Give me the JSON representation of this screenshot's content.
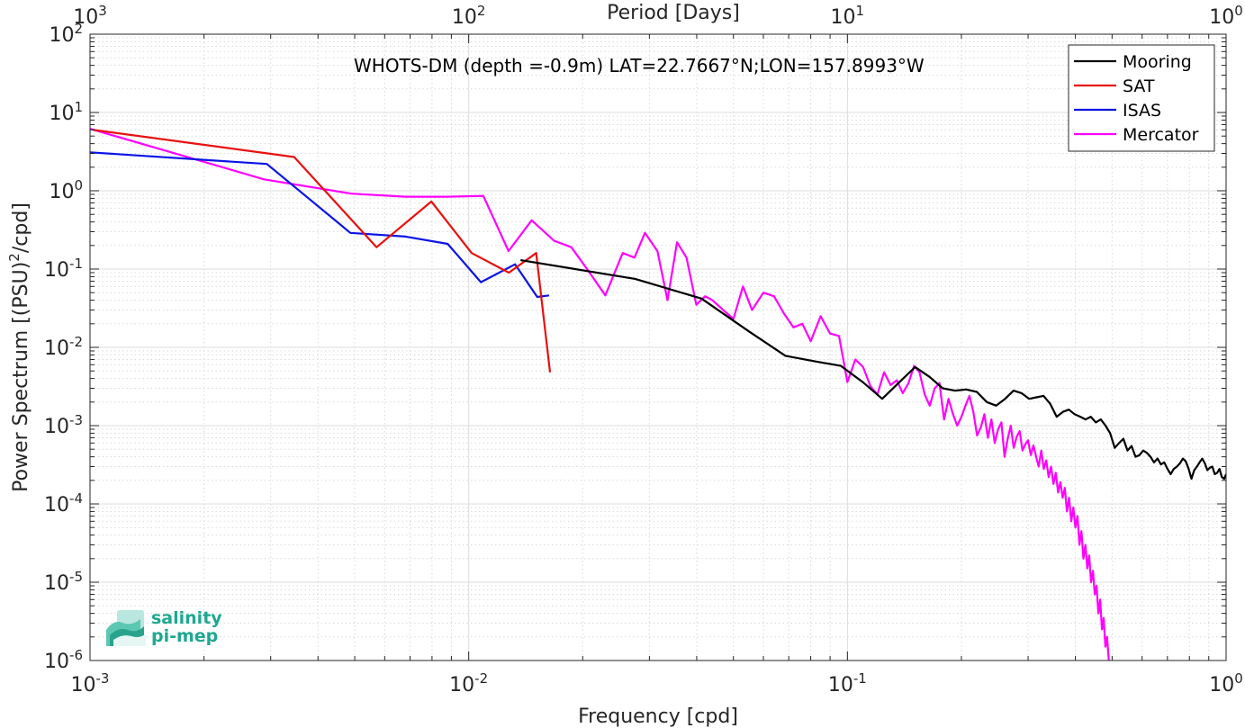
{
  "colors": {
    "mooring": "#000000",
    "sat": "#e8100f",
    "isas": "#0a14e6",
    "mercator": "#ff00ff",
    "logo_teal": "#1fa891"
  },
  "logo": {
    "line1": "salinity",
    "line2": "pi-mep",
    "icon": "salinity-waves-icon"
  },
  "chart_data": {
    "type": "line",
    "title": "WHOTS-DM (depth =-0.9m) LAT=22.7667°N;LON=157.8993°W",
    "xlabel": "Frequency [cpd]",
    "ylabel": "Power Spectrum [(PSU)²/cpd]",
    "top_xlabel": "Period [Days]",
    "xscale": "log",
    "yscale": "log",
    "xlim": [
      0.001,
      1
    ],
    "ylim": [
      1e-06,
      100
    ],
    "grid": true,
    "legend_position": "top-right",
    "x_tick_labels": [
      {
        "base": "10",
        "exp": "-3"
      },
      {
        "base": "10",
        "exp": "-2"
      },
      {
        "base": "10",
        "exp": "-1"
      },
      {
        "base": "10",
        "exp": "0"
      }
    ],
    "top_tick_labels": [
      {
        "base": "10",
        "exp": "3"
      },
      {
        "base": "10",
        "exp": "2"
      },
      {
        "base": "10",
        "exp": "1"
      },
      {
        "base": "10",
        "exp": "0"
      }
    ],
    "y_tick_labels": [
      {
        "base": "10",
        "exp": "-6"
      },
      {
        "base": "10",
        "exp": "-5"
      },
      {
        "base": "10",
        "exp": "-4"
      },
      {
        "base": "10",
        "exp": "-3"
      },
      {
        "base": "10",
        "exp": "-2"
      },
      {
        "base": "10",
        "exp": "-1"
      },
      {
        "base": "10",
        "exp": "0"
      },
      {
        "base": "10",
        "exp": "1"
      },
      {
        "base": "10",
        "exp": "2"
      }
    ],
    "series": [
      {
        "name": "Mooring",
        "color": "#000000",
        "x": [
          0.0137,
          0.0275,
          0.0412,
          0.0549,
          0.0686,
          0.0824,
          0.0961,
          0.1098,
          0.1236,
          0.1373,
          0.151,
          0.1648,
          0.1785,
          0.1922,
          0.2059,
          0.2197,
          0.2334,
          0.2471,
          0.2608,
          0.2746,
          0.2883,
          0.302,
          0.3158,
          0.3295,
          0.3432,
          0.3569,
          0.3707,
          0.3844,
          0.3981,
          0.4119,
          0.4256,
          0.4393,
          0.453,
          0.4668,
          0.4805,
          0.4942,
          0.508,
          0.5217,
          0.5354,
          0.5491,
          0.5629,
          0.5766,
          0.5903,
          0.6041,
          0.6178,
          0.6315,
          0.6452,
          0.659,
          0.6727,
          0.6864,
          0.7002,
          0.7139,
          0.7276,
          0.7413,
          0.7551,
          0.7688,
          0.7825,
          0.7963,
          0.81,
          0.8237,
          0.8374,
          0.8512,
          0.8649,
          0.8786,
          0.8924,
          0.9061,
          0.9198,
          0.9335,
          0.9473,
          0.961,
          0.9747,
          0.9885,
          1.0
        ],
        "values": [
          0.13,
          0.075,
          0.042,
          0.016,
          0.0078,
          0.0066,
          0.0058,
          0.0036,
          0.0022,
          0.0036,
          0.0056,
          0.0042,
          0.003,
          0.0028,
          0.0029,
          0.0027,
          0.002,
          0.0018,
          0.0022,
          0.0028,
          0.0026,
          0.0022,
          0.0023,
          0.0024,
          0.0019,
          0.0013,
          0.0015,
          0.0016,
          0.0014,
          0.0013,
          0.0012,
          0.0013,
          0.0011,
          0.0012,
          0.001,
          0.0008,
          0.00052,
          0.0006,
          0.00068,
          0.00048,
          0.00055,
          0.0004,
          0.00042,
          0.00048,
          0.00045,
          0.0004,
          0.00034,
          0.00038,
          0.00032,
          0.00034,
          0.00028,
          0.00024,
          0.00028,
          0.0003,
          0.00033,
          0.00038,
          0.00035,
          0.00028,
          0.00021,
          0.00027,
          0.0003,
          0.00034,
          0.00038,
          0.00033,
          0.00027,
          0.00029,
          0.0003,
          0.00024,
          0.00025,
          0.00028,
          0.00022,
          0.00021,
          0.00024
        ]
      },
      {
        "name": "SAT",
        "color": "#e8100f",
        "x": [
          0.00102,
          0.00346,
          0.00571,
          0.00797,
          0.01018,
          0.01277,
          0.01507,
          0.0164
        ],
        "values": [
          6.0,
          2.7,
          0.19,
          0.73,
          0.16,
          0.09,
          0.16,
          0.0048
        ]
      },
      {
        "name": "ISAS",
        "color": "#0a14e6",
        "x": [
          0.001,
          0.00293,
          0.00487,
          0.00681,
          0.0088,
          0.01077,
          0.01326,
          0.01517,
          0.0163
        ],
        "values": [
          3.1,
          2.2,
          0.29,
          0.26,
          0.21,
          0.068,
          0.115,
          0.044,
          0.046
        ]
      },
      {
        "name": "Mercator",
        "color": "#ff00ff",
        "x": [
          0.001,
          0.00288,
          0.0049,
          0.00682,
          0.00874,
          0.01093,
          0.01274,
          0.01466,
          0.0168,
          0.01866,
          0.02054,
          0.02295,
          0.0255,
          0.0274,
          0.0292,
          0.0315,
          0.0335,
          0.0355,
          0.0376,
          0.0399,
          0.0421,
          0.044,
          0.047,
          0.05,
          0.053,
          0.056,
          0.06,
          0.064,
          0.068,
          0.072,
          0.076,
          0.08,
          0.085,
          0.09,
          0.095,
          0.1,
          0.105,
          0.11,
          0.115,
          0.12,
          0.125,
          0.13,
          0.135,
          0.14,
          0.145,
          0.15,
          0.155,
          0.16,
          0.165,
          0.17,
          0.175,
          0.18,
          0.185,
          0.19,
          0.195,
          0.2,
          0.205,
          0.21,
          0.215,
          0.22,
          0.225,
          0.23,
          0.235,
          0.24,
          0.245,
          0.25,
          0.255,
          0.26,
          0.265,
          0.27,
          0.275,
          0.28,
          0.285,
          0.29,
          0.295,
          0.3,
          0.305,
          0.31,
          0.315,
          0.32,
          0.325,
          0.33,
          0.335,
          0.34,
          0.345,
          0.35,
          0.355,
          0.36,
          0.365,
          0.37,
          0.375,
          0.38,
          0.385,
          0.39,
          0.395,
          0.4,
          0.405,
          0.41,
          0.415,
          0.42,
          0.425,
          0.43,
          0.435,
          0.44,
          0.445,
          0.45,
          0.455,
          0.46,
          0.465,
          0.47,
          0.475,
          0.48,
          0.485,
          0.49
        ],
        "values": [
          6.2,
          1.4,
          0.92,
          0.84,
          0.84,
          0.86,
          0.17,
          0.42,
          0.23,
          0.19,
          0.1,
          0.046,
          0.16,
          0.14,
          0.29,
          0.17,
          0.04,
          0.22,
          0.14,
          0.035,
          0.045,
          0.04,
          0.03,
          0.023,
          0.06,
          0.03,
          0.05,
          0.045,
          0.027,
          0.018,
          0.02,
          0.012,
          0.025,
          0.015,
          0.014,
          0.0036,
          0.007,
          0.0056,
          0.0032,
          0.0025,
          0.0048,
          0.0033,
          0.0038,
          0.0026,
          0.0035,
          0.0058,
          0.0048,
          0.0025,
          0.0018,
          0.003,
          0.0035,
          0.0012,
          0.0022,
          0.0014,
          0.001,
          0.0013,
          0.0018,
          0.0024,
          0.0015,
          0.00075,
          0.00095,
          0.0014,
          0.0007,
          0.0012,
          0.0006,
          0.0009,
          0.0011,
          0.0004,
          0.00068,
          0.001,
          0.00052,
          0.00072,
          0.00085,
          0.00048,
          0.00058,
          0.00065,
          0.00042,
          0.00056,
          0.0004,
          0.0003,
          0.00048,
          0.00028,
          0.00036,
          0.00022,
          0.0003,
          0.00018,
          0.00025,
          0.00014,
          0.00019,
          0.00012,
          0.00016,
          8e-05,
          0.00012,
          6e-05,
          9e-05,
          5e-05,
          7e-05,
          3e-05,
          4.5e-05,
          2e-05,
          3e-05,
          1.5e-05,
          2.2e-05,
          1e-05,
          1.4e-05,
          7e-06,
          9e-06,
          4e-06,
          6e-06,
          2.5e-06,
          3.5e-06,
          1.5e-06,
          2e-06,
          1e-06
        ]
      }
    ]
  }
}
